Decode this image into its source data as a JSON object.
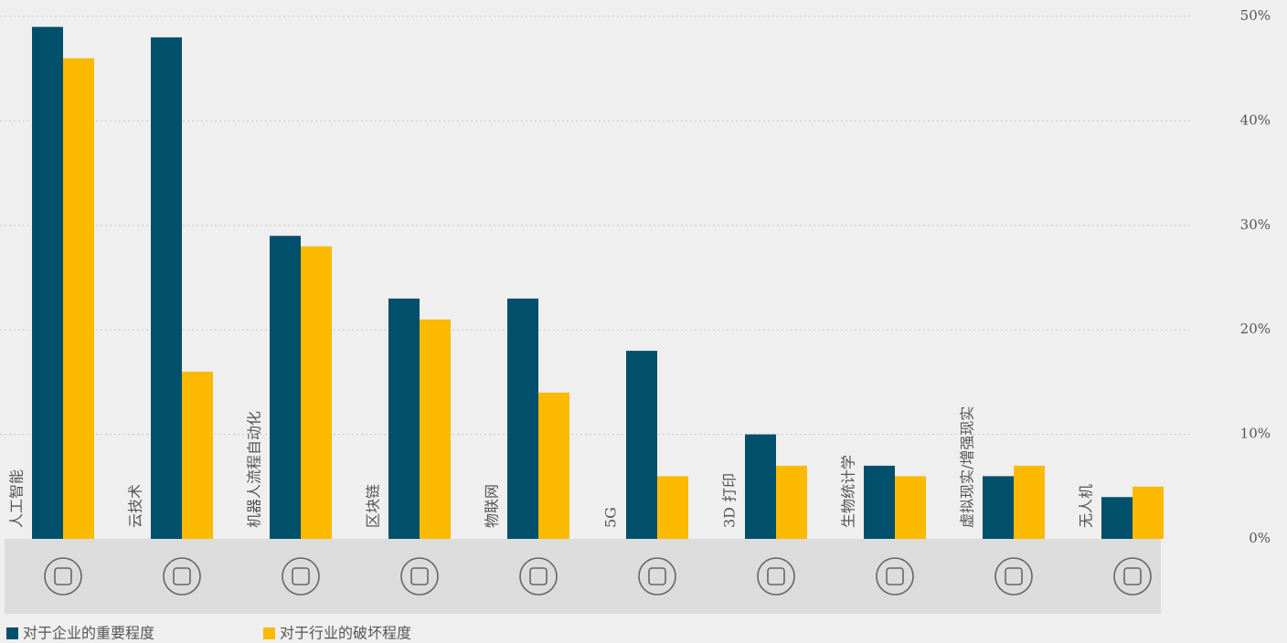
{
  "chart_data": {
    "type": "bar",
    "categories": [
      "人工智能",
      "云技术",
      "机器人流程自动化",
      "区块链",
      "物联网",
      "5G",
      "3D 打印",
      "生物统计学",
      "虚拟现实/增强现实",
      "无人机"
    ],
    "series": [
      {
        "name": "对于企业的重要程度",
        "color": "#004f6b",
        "values": [
          49,
          48,
          29,
          23,
          23,
          18,
          10,
          7,
          6,
          4
        ]
      },
      {
        "name": "对于行业的破坏程度",
        "color": "#fbb900",
        "values": [
          46,
          16,
          28,
          21,
          14,
          6,
          7,
          6,
          7,
          5
        ]
      }
    ],
    "ylim": [
      0,
      50
    ],
    "yticks": [
      {
        "value": 0,
        "label": "0%"
      },
      {
        "value": 10,
        "label": "10%"
      },
      {
        "value": 20,
        "label": "20%"
      },
      {
        "value": 30,
        "label": "30%"
      },
      {
        "value": 40,
        "label": "40%"
      },
      {
        "value": 50,
        "label": "50%"
      }
    ],
    "grid": true,
    "legend": "bottom-left"
  }
}
